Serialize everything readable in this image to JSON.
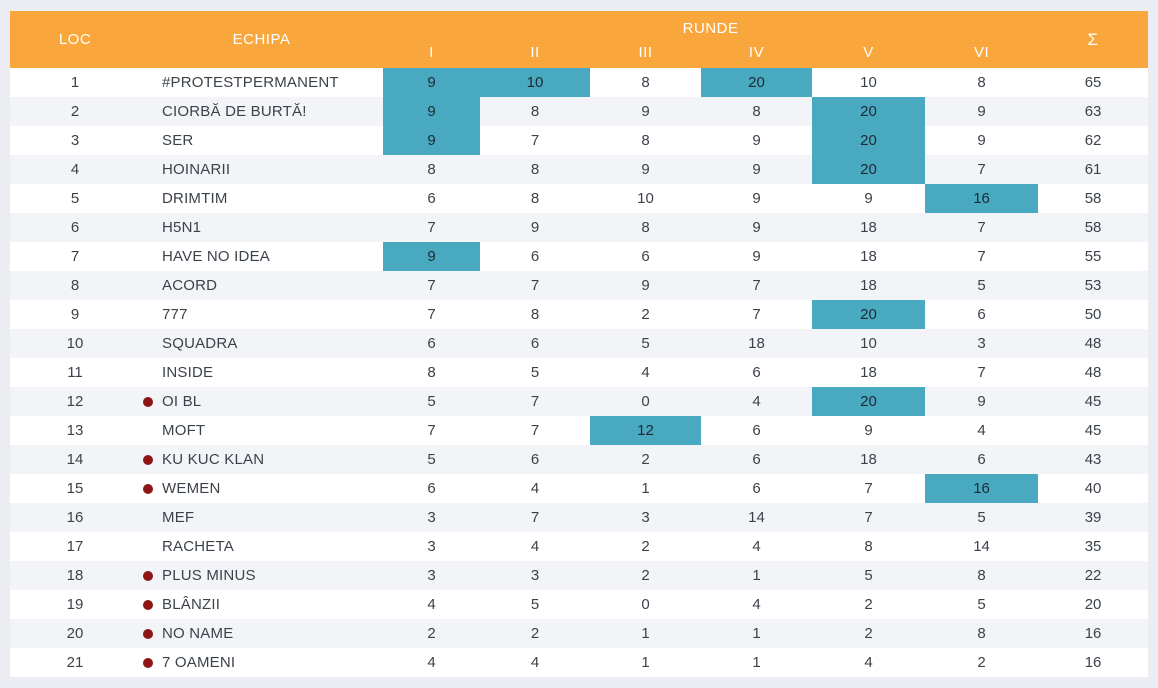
{
  "colors": {
    "header_bg": "#F9A63C",
    "highlight_bg": "#48A9C1",
    "dot_color": "#8D1515",
    "page_bg": "#ECEDF3",
    "alt_row_bg": "#F3F4F8",
    "text": "#3C424A"
  },
  "table": {
    "headers": {
      "loc": "LOC",
      "echipa": "ECHIPA",
      "runde": "RUNDE",
      "rounds": [
        "I",
        "II",
        "III",
        "IV",
        "V",
        "VI"
      ],
      "sum": "Σ"
    },
    "rows": [
      {
        "loc": "1",
        "team": "#PROTESTPERMANENT",
        "dot": false,
        "scores": [
          9,
          10,
          8,
          20,
          10,
          8
        ],
        "highlights": [
          1,
          1,
          0,
          1,
          0,
          0
        ],
        "total": "65"
      },
      {
        "loc": "2",
        "team": "CIORBĂ DE BURTĂ!",
        "dot": false,
        "scores": [
          9,
          8,
          9,
          8,
          20,
          9
        ],
        "highlights": [
          1,
          0,
          0,
          0,
          1,
          0
        ],
        "total": "63"
      },
      {
        "loc": "3",
        "team": "SER",
        "dot": false,
        "scores": [
          9,
          7,
          8,
          9,
          20,
          9
        ],
        "highlights": [
          1,
          0,
          0,
          0,
          1,
          0
        ],
        "total": "62"
      },
      {
        "loc": "4",
        "team": "HOINARII",
        "dot": false,
        "scores": [
          8,
          8,
          9,
          9,
          20,
          7
        ],
        "highlights": [
          0,
          0,
          0,
          0,
          1,
          0
        ],
        "total": "61"
      },
      {
        "loc": "5",
        "team": "DRIMTIM",
        "dot": false,
        "scores": [
          6,
          8,
          10,
          9,
          9,
          16
        ],
        "highlights": [
          0,
          0,
          0,
          0,
          0,
          1
        ],
        "total": "58"
      },
      {
        "loc": "6",
        "team": "H5N1",
        "dot": false,
        "scores": [
          7,
          9,
          8,
          9,
          18,
          7
        ],
        "highlights": [
          0,
          0,
          0,
          0,
          0,
          0
        ],
        "total": "58"
      },
      {
        "loc": "7",
        "team": "HAVE NO IDEA",
        "dot": false,
        "scores": [
          9,
          6,
          6,
          9,
          18,
          7
        ],
        "highlights": [
          1,
          0,
          0,
          0,
          0,
          0
        ],
        "total": "55"
      },
      {
        "loc": "8",
        "team": "ACORD",
        "dot": false,
        "scores": [
          7,
          7,
          9,
          7,
          18,
          5
        ],
        "highlights": [
          0,
          0,
          0,
          0,
          0,
          0
        ],
        "total": "53"
      },
      {
        "loc": "9",
        "team": "777",
        "dot": false,
        "scores": [
          7,
          8,
          2,
          7,
          20,
          6
        ],
        "highlights": [
          0,
          0,
          0,
          0,
          1,
          0
        ],
        "total": "50"
      },
      {
        "loc": "10",
        "team": "SQUADRA",
        "dot": false,
        "scores": [
          6,
          6,
          5,
          18,
          10,
          3
        ],
        "highlights": [
          0,
          0,
          0,
          0,
          0,
          0
        ],
        "total": "48"
      },
      {
        "loc": "11",
        "team": "INSIDE",
        "dot": false,
        "scores": [
          8,
          5,
          4,
          6,
          18,
          7
        ],
        "highlights": [
          0,
          0,
          0,
          0,
          0,
          0
        ],
        "total": "48"
      },
      {
        "loc": "12",
        "team": "OI BL",
        "dot": true,
        "scores": [
          5,
          7,
          0,
          4,
          20,
          9
        ],
        "highlights": [
          0,
          0,
          0,
          0,
          1,
          0
        ],
        "total": "45"
      },
      {
        "loc": "13",
        "team": "MOFT",
        "dot": false,
        "scores": [
          7,
          7,
          12,
          6,
          9,
          4
        ],
        "highlights": [
          0,
          0,
          1,
          0,
          0,
          0
        ],
        "total": "45"
      },
      {
        "loc": "14",
        "team": "KU KUC KLAN",
        "dot": true,
        "scores": [
          5,
          6,
          2,
          6,
          18,
          6
        ],
        "highlights": [
          0,
          0,
          0,
          0,
          0,
          0
        ],
        "total": "43"
      },
      {
        "loc": "15",
        "team": "WEMEN",
        "dot": true,
        "scores": [
          6,
          4,
          1,
          6,
          7,
          16
        ],
        "highlights": [
          0,
          0,
          0,
          0,
          0,
          1
        ],
        "total": "40"
      },
      {
        "loc": "16",
        "team": "MEF",
        "dot": false,
        "scores": [
          3,
          7,
          3,
          14,
          7,
          5
        ],
        "highlights": [
          0,
          0,
          0,
          0,
          0,
          0
        ],
        "total": "39"
      },
      {
        "loc": "17",
        "team": "RACHETA",
        "dot": false,
        "scores": [
          3,
          4,
          2,
          4,
          8,
          14
        ],
        "highlights": [
          0,
          0,
          0,
          0,
          0,
          0
        ],
        "total": "35"
      },
      {
        "loc": "18",
        "team": "PLUS MINUS",
        "dot": true,
        "scores": [
          3,
          3,
          2,
          1,
          5,
          8
        ],
        "highlights": [
          0,
          0,
          0,
          0,
          0,
          0
        ],
        "total": "22"
      },
      {
        "loc": "19",
        "team": "BLÂNZII",
        "dot": true,
        "scores": [
          4,
          5,
          0,
          4,
          2,
          5
        ],
        "highlights": [
          0,
          0,
          0,
          0,
          0,
          0
        ],
        "total": "20"
      },
      {
        "loc": "20",
        "team": "NO NAME",
        "dot": true,
        "scores": [
          2,
          2,
          1,
          1,
          2,
          8
        ],
        "highlights": [
          0,
          0,
          0,
          0,
          0,
          0
        ],
        "total": "16"
      },
      {
        "loc": "21",
        "team": "7 OAMENI",
        "dot": true,
        "scores": [
          4,
          4,
          1,
          1,
          4,
          2
        ],
        "highlights": [
          0,
          0,
          0,
          0,
          0,
          0
        ],
        "total": "16"
      }
    ]
  }
}
